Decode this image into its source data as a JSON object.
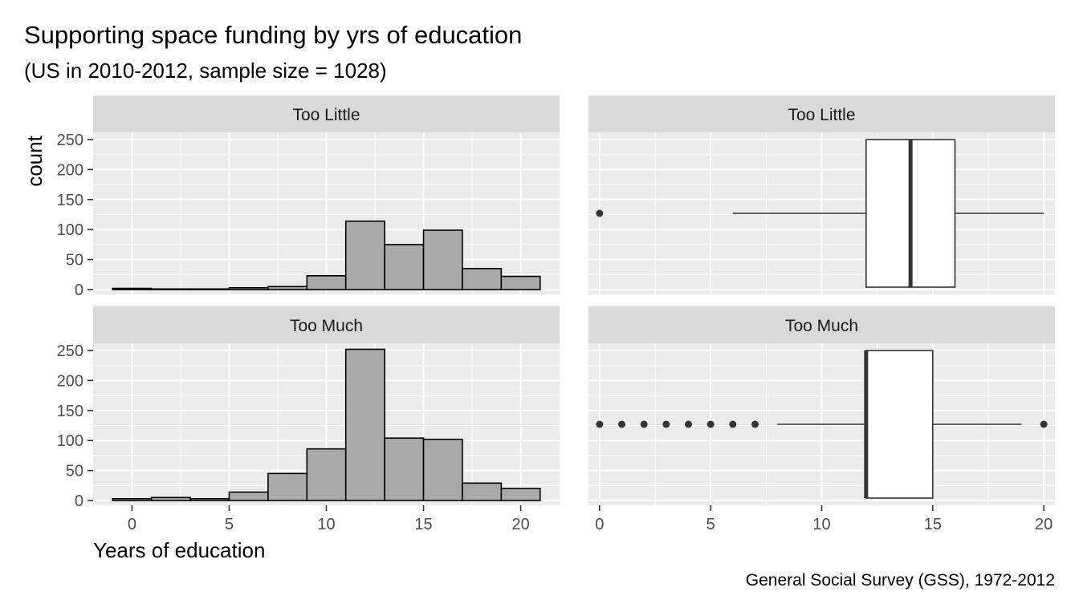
{
  "header": {
    "title": "Supporting space funding by yrs of education",
    "subtitle": "(US in 2010-2012, sample size = 1028)",
    "caption": "General Social Survey (GSS), 1972-2012"
  },
  "colors": {
    "panel_bg": "#EBEBEB",
    "grid": "#FFFFFF",
    "strip_bg": "#D9D9D9",
    "bar_fill": "#A9A9A9",
    "outline": "#000000",
    "box_fill": "#FFFFFF",
    "point": "#333333",
    "whisker": "#333333"
  },
  "chart_data": [
    {
      "type": "histogram",
      "facets": [
        "Too Little",
        "Too Much"
      ],
      "xlabel": "Years of education",
      "ylabel": "count",
      "xlim": [
        -2,
        22
      ],
      "ylim": [
        -8,
        262
      ],
      "x_ticks": [
        0,
        5,
        10,
        15,
        20
      ],
      "y_ticks": [
        0,
        50,
        100,
        150,
        200,
        250
      ],
      "bin_width": 2,
      "bin_edges": [
        -1,
        1,
        3,
        5,
        7,
        9,
        11,
        13,
        15,
        17,
        19,
        21
      ],
      "series": [
        {
          "name": "Too Little",
          "values": [
            2,
            1,
            1,
            3,
            5,
            23,
            114,
            75,
            99,
            35,
            22
          ]
        },
        {
          "name": "Too Much",
          "values": [
            3,
            5,
            3,
            14,
            45,
            86,
            252,
            104,
            102,
            29,
            20
          ]
        }
      ]
    },
    {
      "type": "boxplot",
      "orientation": "horizontal",
      "facets": [
        "Too Little",
        "Too Much"
      ],
      "xlim": [
        -0.5,
        20.5
      ],
      "x_ticks": [
        0,
        5,
        10,
        15,
        20
      ],
      "series": [
        {
          "name": "Too Little",
          "whisker_low": 6,
          "q1": 12,
          "median": 14,
          "q3": 16,
          "whisker_high": 20,
          "outliers": [
            0
          ]
        },
        {
          "name": "Too Much",
          "whisker_low": 8,
          "q1": 12,
          "median": 12,
          "q3": 15,
          "whisker_high": 19,
          "outliers": [
            0,
            1,
            2,
            3,
            4,
            5,
            6,
            7,
            20
          ]
        }
      ]
    }
  ]
}
